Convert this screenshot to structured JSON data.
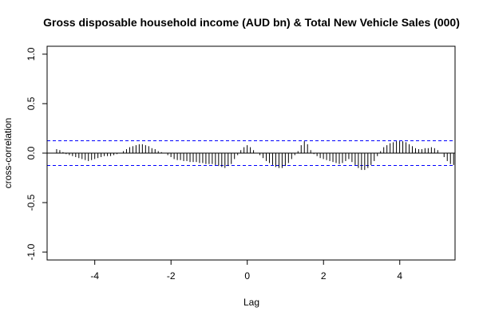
{
  "chart_data": {
    "type": "bar",
    "title": "Gross disposable household income (AUD bn) & Total New Vehicle Sales (000)",
    "xlabel": "Lag",
    "ylabel": "cross-correlation",
    "xlim": [
      -5.25,
      5.45
    ],
    "ylim": [
      -1.08,
      1.08
    ],
    "x_ticks": [
      "-4",
      "-2",
      "0",
      "2",
      "4"
    ],
    "x_tick_values": [
      -4,
      -2,
      0,
      2,
      4
    ],
    "y_ticks": [
      "-1.0",
      "-0.5",
      "0.0",
      "0.5",
      "1.0"
    ],
    "y_tick_values": [
      -1.0,
      -0.5,
      0.0,
      0.5,
      1.0
    ],
    "confidence_band": [
      0.125,
      -0.125
    ],
    "colors": {
      "bars": "#000000",
      "band": "#0000ff",
      "zero_line": "#000000"
    },
    "lag_start": -5,
    "lag_step": 0.0833,
    "values": [
      0.04,
      0.03,
      0.01,
      -0.01,
      -0.02,
      -0.03,
      -0.04,
      -0.05,
      -0.06,
      -0.07,
      -0.08,
      -0.07,
      -0.06,
      -0.05,
      -0.04,
      -0.03,
      -0.03,
      -0.03,
      -0.02,
      -0.01,
      0.0,
      0.02,
      0.04,
      0.06,
      0.07,
      0.08,
      0.09,
      0.09,
      0.08,
      0.07,
      0.05,
      0.04,
      0.02,
      0.01,
      0.0,
      -0.02,
      -0.04,
      -0.06,
      -0.07,
      -0.07,
      -0.08,
      -0.08,
      -0.09,
      -0.09,
      -0.09,
      -0.1,
      -0.1,
      -0.11,
      -0.11,
      -0.11,
      -0.12,
      -0.13,
      -0.14,
      -0.15,
      -0.13,
      -0.11,
      -0.06,
      -0.02,
      0.03,
      0.06,
      0.08,
      0.06,
      0.03,
      0.0,
      -0.02,
      -0.05,
      -0.08,
      -0.1,
      -0.12,
      -0.14,
      -0.15,
      -0.15,
      -0.13,
      -0.1,
      -0.06,
      -0.02,
      0.02,
      0.08,
      0.12,
      0.09,
      0.03,
      -0.01,
      -0.03,
      -0.05,
      -0.06,
      -0.07,
      -0.08,
      -0.09,
      -0.1,
      -0.11,
      -0.1,
      -0.08,
      -0.06,
      -0.09,
      -0.12,
      -0.15,
      -0.17,
      -0.17,
      -0.15,
      -0.12,
      -0.08,
      -0.03,
      0.02,
      0.06,
      0.08,
      0.1,
      0.11,
      0.12,
      0.12,
      0.12,
      0.11,
      0.09,
      0.07,
      0.05,
      0.04,
      0.04,
      0.05,
      0.05,
      0.06,
      0.05,
      0.03,
      0.0,
      -0.04,
      -0.08,
      -0.11,
      -0.12
    ]
  }
}
